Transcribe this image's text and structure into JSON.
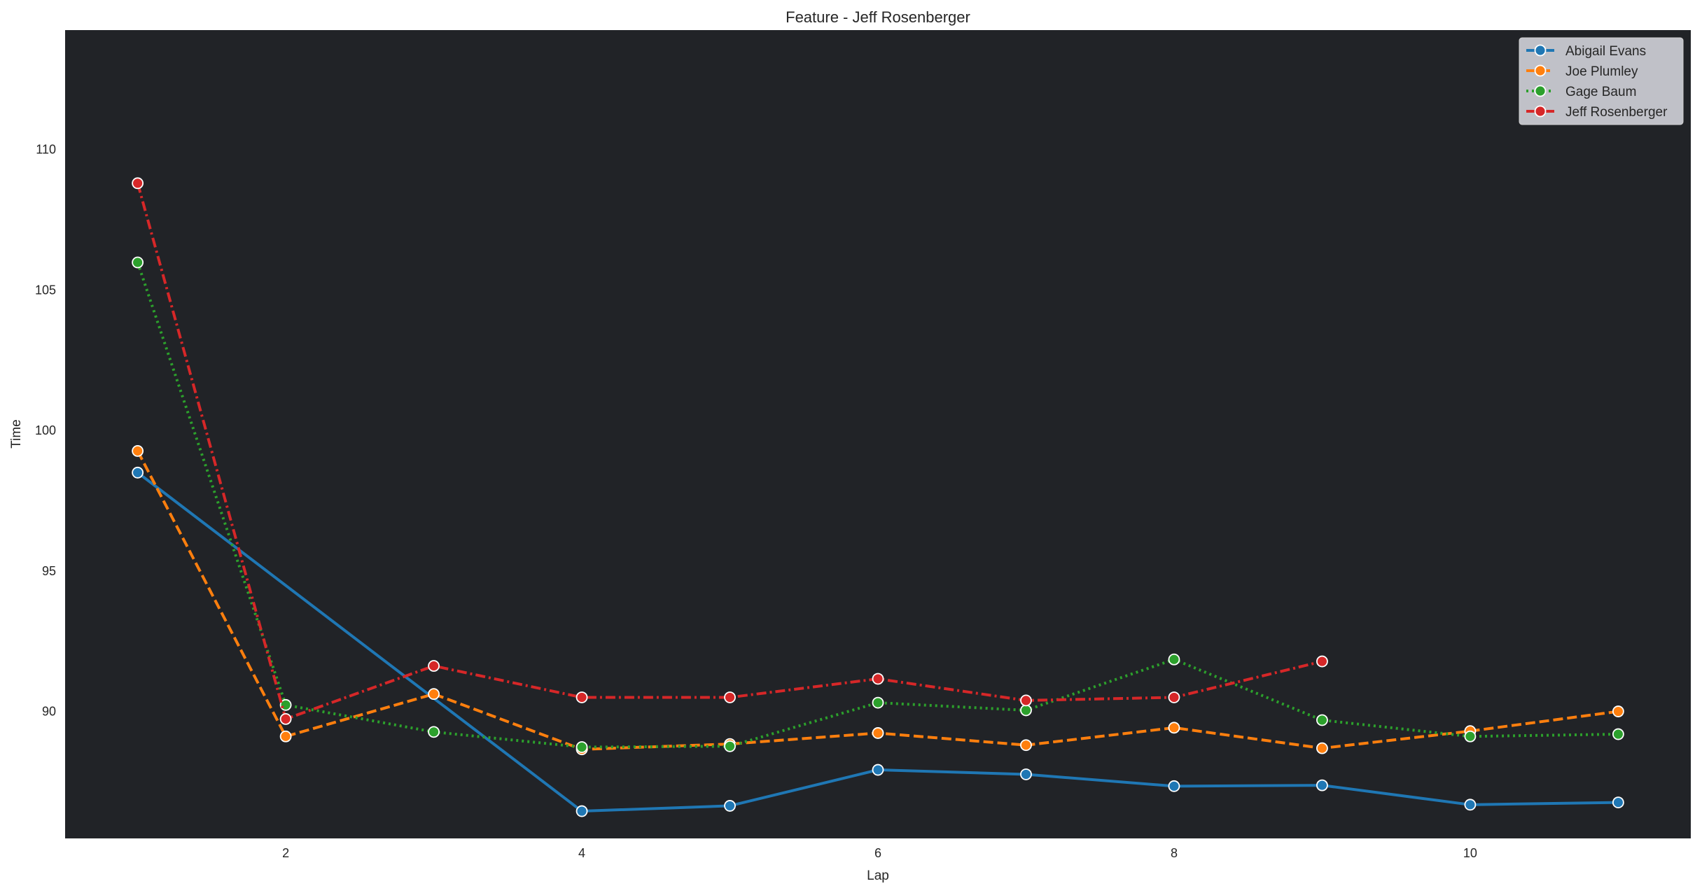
{
  "chart_data": {
    "type": "line",
    "title": "Feature - Jeff Rosenberger",
    "xlabel": "Lap",
    "ylabel": "Time",
    "xlim": [
      0.51,
      11.49
    ],
    "ylim": [
      85.48,
      114.25
    ],
    "xticks": [
      2,
      4,
      6,
      8,
      10
    ],
    "yticks": [
      90,
      95,
      100,
      105,
      110
    ],
    "grid": false,
    "background": "#212327",
    "legend_position": "top-right",
    "series": [
      {
        "name": "Abigail Evans",
        "color": "#1f77b4",
        "style": "solid",
        "x": [
          1,
          4,
          5,
          6,
          7,
          8,
          9,
          10,
          11
        ],
        "y": [
          98.5,
          86.45,
          86.64,
          87.92,
          87.76,
          87.34,
          87.37,
          86.68,
          86.76
        ]
      },
      {
        "name": "Joe Plumley",
        "color": "#ff7f0e",
        "style": "dashed",
        "x": [
          1,
          2,
          3,
          4,
          5,
          6,
          7,
          8,
          9,
          10,
          11
        ],
        "y": [
          99.27,
          89.11,
          90.62,
          88.65,
          88.84,
          89.23,
          88.8,
          89.42,
          88.69,
          89.3,
          90.0
        ]
      },
      {
        "name": "Gage Baum",
        "color": "#2ca02c",
        "style": "dotted",
        "x": [
          1,
          2,
          3,
          4,
          5,
          6,
          7,
          8,
          9,
          10,
          11
        ],
        "y": [
          105.98,
          90.23,
          89.27,
          88.73,
          88.76,
          90.31,
          90.04,
          91.85,
          89.69,
          89.11,
          89.19
        ]
      },
      {
        "name": "Jeff Rosenberger",
        "color": "#d62728",
        "style": "dashdot",
        "x": [
          1,
          2,
          3,
          4,
          5,
          6,
          7,
          8,
          9
        ],
        "y": [
          108.8,
          89.73,
          91.62,
          90.5,
          90.5,
          91.16,
          90.39,
          90.5,
          91.78
        ]
      }
    ]
  }
}
